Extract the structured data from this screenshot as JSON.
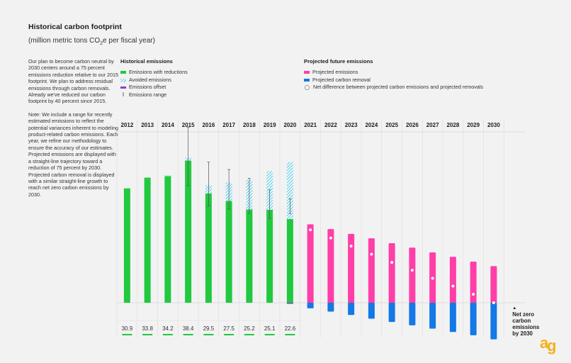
{
  "title": "Historical carbon footprint",
  "subtitle_main": "(million metric tons CO",
  "subtitle_sub": "2",
  "subtitle_end": "e per fiscal year)",
  "side_text": [
    "Our plan to become carbon neutral by 2030 centers around a 75 percent emissions reduction relative to our 2015 footprint. We plan to address residual emissions through carbon removals. Already we've reduced our carbon footprint by 40 percent since 2015.",
    "Note: We include a range for recently estimated emissions to reflect the potential variances inherent to modeling product-related carbon emissions. Each year, we refine our methodology to ensure the accuracy of our estimates. Projected emissions are displayed with a straight-line trajectory toward a reduction of 75 percent by 2030. Projected carbon removal is displayed with a similar straight-line growth to reach net zero carbon emissions by 2030."
  ],
  "legend_hist": {
    "title": "Historical emissions",
    "items": [
      "Emissions with reductions",
      "Avoided emissions",
      "Emissions offset",
      "Emissions range"
    ]
  },
  "legend_proj": {
    "title": "Projected future emissions",
    "items": [
      "Projected emissions",
      "Projected carbon removal",
      "Net difference between projected carbon emissions and projected removals"
    ]
  },
  "colors": {
    "green": "#21c93f",
    "green_underline": "#21c93f",
    "avoided": "#7fd3ea",
    "offset": "#8b3fc9",
    "pink": "#ff3ea8",
    "blue": "#1478e6"
  },
  "annotation": [
    "Net zero",
    "carbon",
    "emissions",
    "by 2030"
  ],
  "annotation_arrow": "▲",
  "chart_data": {
    "type": "bar",
    "years": [
      "2012",
      "2013",
      "2014",
      "2015",
      "2016",
      "2017",
      "2018",
      "2019",
      "2020",
      "2021",
      "2022",
      "2023",
      "2024",
      "2025",
      "2026",
      "2027",
      "2028",
      "2029",
      "2030"
    ],
    "historical_labels": [
      "30.9",
      "33.8",
      "34.2",
      "38.4",
      "29.5",
      "27.5",
      "25.2",
      "25.1",
      "22.6"
    ],
    "emissions_with_reductions": [
      30.9,
      33.8,
      34.2,
      38.4,
      29.5,
      27.5,
      25.2,
      25.1,
      22.6
    ],
    "avoided_emissions": [
      0,
      0,
      0.3,
      0.8,
      2.2,
      5.0,
      8.0,
      10.5,
      15.4
    ],
    "emissions_offset": [
      0,
      0,
      0,
      0,
      0,
      0,
      0,
      0,
      0.3
    ],
    "emissions_range": [
      null,
      null,
      null,
      [
        31.6,
        47.4
      ],
      [
        26.1,
        38.0
      ],
      [
        25.3,
        36.0
      ],
      [
        24.1,
        33.6
      ],
      [
        22.8,
        30.5
      ],
      [
        24.1,
        28.1
      ]
    ],
    "projected_emissions": [
      21.2,
      19.9,
      18.6,
      17.4,
      16.1,
      14.9,
      13.6,
      12.4,
      11.1,
      9.9
    ],
    "projected_removal": [
      1.5,
      2.4,
      3.3,
      4.3,
      5.2,
      6.1,
      7.0,
      7.9,
      8.8,
      9.9
    ],
    "net_difference": [
      19.7,
      17.5,
      15.3,
      13.1,
      10.9,
      8.8,
      6.6,
      4.5,
      2.3,
      0
    ],
    "ylim": [
      -10,
      50
    ]
  }
}
